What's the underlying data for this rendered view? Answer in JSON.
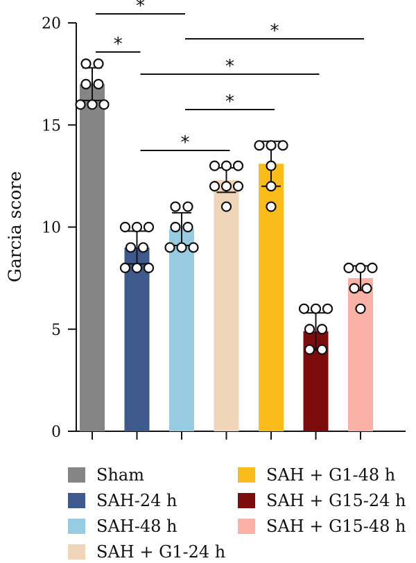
{
  "chart_data": {
    "type": "bar",
    "ylabel": "Garcia score",
    "xlabel": "",
    "ylim": [
      0,
      20
    ],
    "yticks": [
      0,
      5,
      10,
      15,
      20
    ],
    "grid": false,
    "legend_position": "bottom",
    "categories": [
      "Sham",
      "SAH-24 h",
      "SAH-48 h",
      "SAH + G1-24 h",
      "SAH + G1-48 h",
      "SAH + G15-24 h",
      "SAH + G15-48 h"
    ],
    "series": [
      {
        "values": [
          17.0,
          9.0,
          9.9,
          12.3,
          13.1,
          4.9,
          7.5
        ],
        "errors": [
          0.8,
          0.8,
          0.8,
          0.6,
          1.1,
          0.9,
          0.6
        ],
        "colors": [
          "#858585",
          "#3e5a8c",
          "#97cbe1",
          "#efd6b8",
          "#f9bc1a",
          "#7d0c0c",
          "#fab2a6"
        ],
        "points": [
          [
            18,
            18,
            17,
            17,
            16,
            16,
            16
          ],
          [
            10,
            10,
            10,
            9,
            9,
            8,
            8,
            8
          ],
          [
            11,
            11,
            10,
            10,
            9,
            9,
            9
          ],
          [
            13,
            13,
            13,
            12,
            12,
            12,
            11
          ],
          [
            14,
            14,
            14,
            13,
            12,
            11
          ],
          [
            6,
            6,
            6,
            5,
            5,
            4,
            4
          ],
          [
            8,
            8,
            8,
            7,
            7,
            6
          ]
        ]
      }
    ],
    "significance": [
      {
        "from": 0,
        "to": 2,
        "label": "*"
      },
      {
        "from": 0,
        "to": 1,
        "label": "*"
      },
      {
        "from": 2,
        "to": 6,
        "label": "*"
      },
      {
        "from": 1,
        "to": 5,
        "label": "*"
      },
      {
        "from": 2,
        "to": 4,
        "label": "*"
      },
      {
        "from": 1,
        "to": 3,
        "label": "*"
      }
    ]
  }
}
